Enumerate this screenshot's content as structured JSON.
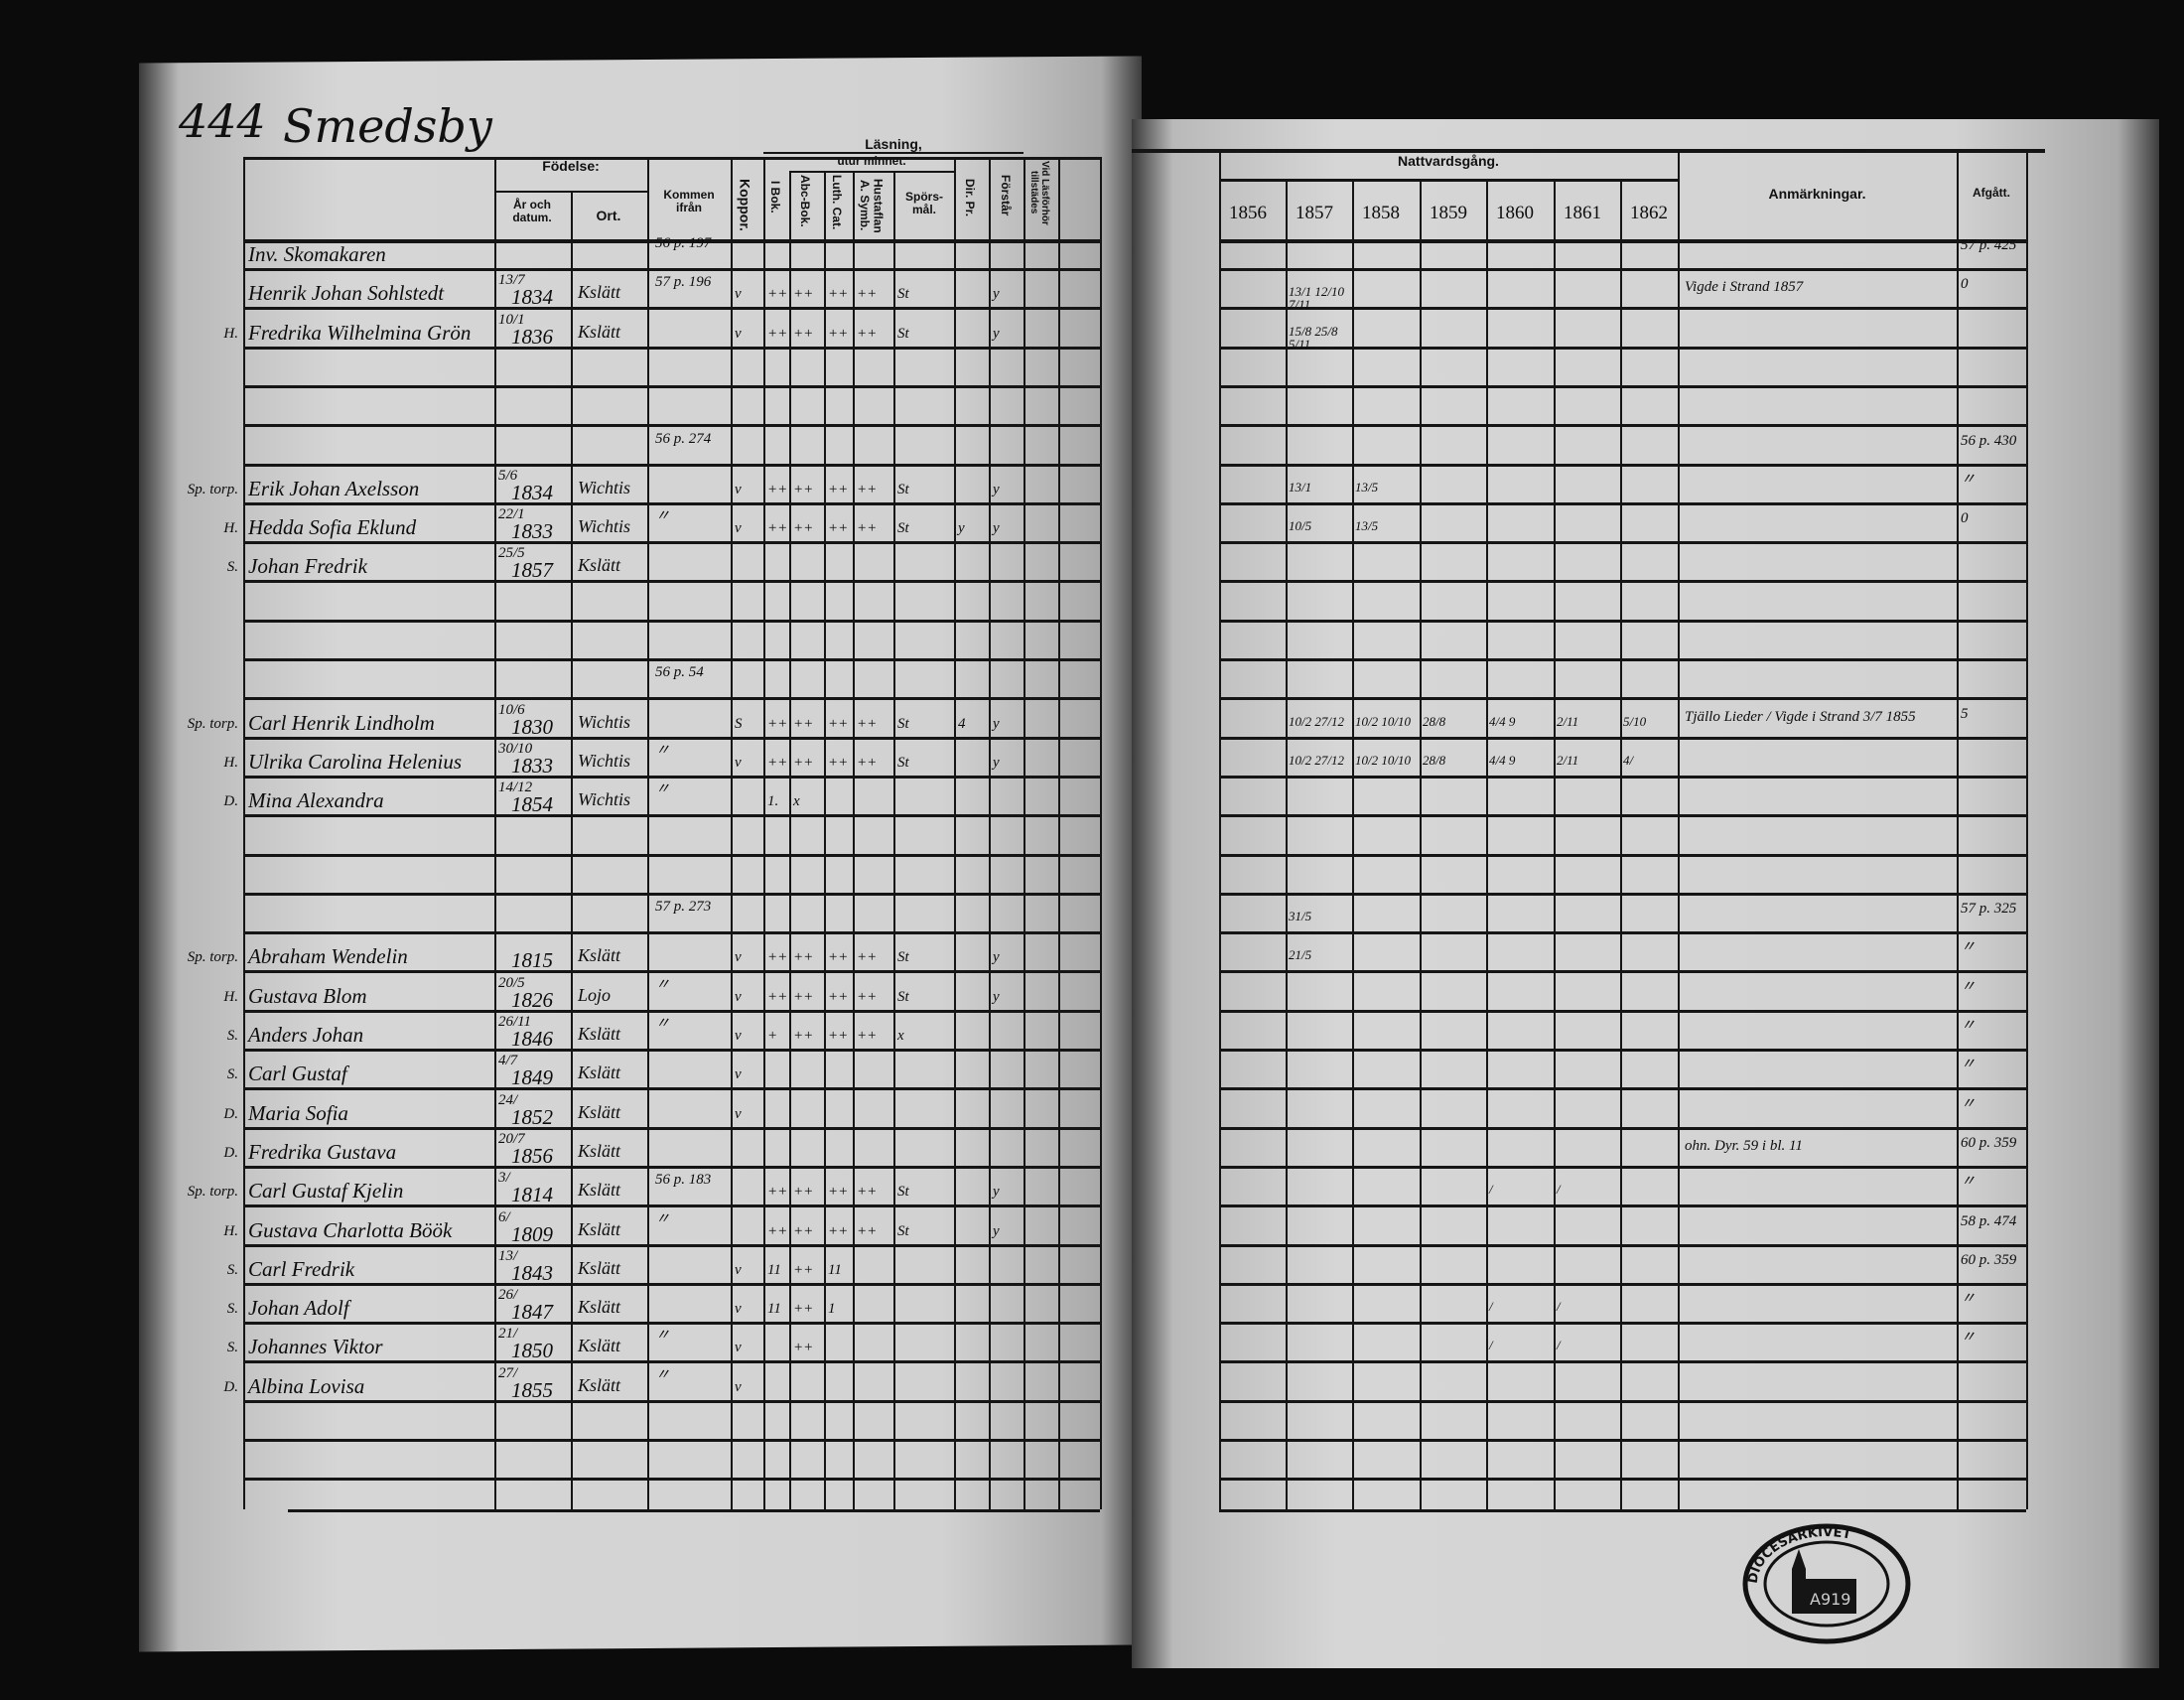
{
  "page_number": "444",
  "village": "Smedsby",
  "left_headers": {
    "birth": "Födelse:",
    "year_date": "År och datum.",
    "place": "Ort.",
    "came_from": "Kommen ifrån",
    "smallpox": "Koppor.",
    "reading": "Läsning,",
    "by_heart": "utur minnet.",
    "in_book": "I Bok.",
    "abc_book": "Abc-Bok.",
    "luth_cat": "Luth. Cat.",
    "hustaflan": "Hustaflan A. Symb.",
    "questions": "Spörs-mål.",
    "dir_pr": "Dir. Pr.",
    "understands": "Förstår",
    "attended": "Vid Läsförhör tillstädes"
  },
  "right_headers": {
    "communion": "Nattvardsgång.",
    "years": [
      "1856",
      "1857",
      "1858",
      "1859",
      "1860",
      "1861",
      "1862"
    ],
    "remarks": "Anmärkningar.",
    "departed": "Afgått."
  },
  "rows": [
    {
      "prefix": "",
      "name": "Inv. Skomakaren",
      "date": "",
      "year": "",
      "place": "",
      "from": "56 p. 197",
      "reading": [
        "",
        "",
        "",
        "",
        "",
        "",
        "",
        ""
      ],
      "comm": [
        "",
        "",
        "",
        "",
        "",
        "",
        ""
      ],
      "remark": "",
      "departed": "57 p. 425"
    },
    {
      "prefix": "",
      "name": "Henrik Johan Sohlstedt",
      "date": "13/7",
      "year": "1834",
      "place": "Kslätt",
      "from": "57 p. 196",
      "reading": [
        "v",
        "++",
        "++",
        "++",
        "++",
        "St",
        "",
        "y"
      ],
      "comm": [
        "",
        "13/1 12/10 7/11",
        "",
        "",
        "",
        "",
        ""
      ],
      "remark": "Vigde i Strand 1857",
      "departed": "0"
    },
    {
      "prefix": "H.",
      "name": "Fredrika Wilhelmina Grön",
      "date": "10/1",
      "year": "1836",
      "place": "Kslätt",
      "from": "",
      "reading": [
        "v",
        "++",
        "++",
        "++",
        "++",
        "St",
        "",
        "y"
      ],
      "comm": [
        "",
        "15/8 25/8 5/11",
        "",
        "",
        "",
        "",
        ""
      ],
      "remark": "",
      "departed": ""
    },
    {
      "prefix": "",
      "name": "",
      "date": "",
      "year": "",
      "place": "",
      "from": "",
      "reading": [
        "",
        "",
        "",
        "",
        "",
        "",
        "",
        ""
      ],
      "comm": [
        "",
        "",
        "",
        "",
        "",
        "",
        ""
      ],
      "remark": "",
      "departed": ""
    },
    {
      "prefix": "",
      "name": "",
      "date": "",
      "year": "",
      "place": "",
      "from": "",
      "reading": [
        "",
        "",
        "",
        "",
        "",
        "",
        "",
        ""
      ],
      "comm": [
        "",
        "",
        "",
        "",
        "",
        "",
        ""
      ],
      "remark": "",
      "departed": ""
    },
    {
      "prefix": "",
      "name": "",
      "date": "",
      "year": "",
      "place": "",
      "from": "56 p. 274",
      "reading": [
        "",
        "",
        "",
        "",
        "",
        "",
        "",
        ""
      ],
      "comm": [
        "",
        "",
        "",
        "",
        "",
        "",
        ""
      ],
      "remark": "",
      "departed": "56 p. 430"
    },
    {
      "prefix": "Sp. torp.",
      "name": "Erik Johan Axelsson",
      "date": "5/6",
      "year": "1834",
      "place": "Wichtis",
      "from": "",
      "reading": [
        "v",
        "++",
        "++",
        "++",
        "++",
        "St",
        "",
        "y"
      ],
      "comm": [
        "",
        "13/1",
        "13/5",
        "",
        "",
        "",
        ""
      ],
      "remark": "",
      "departed": "〃"
    },
    {
      "prefix": "H.",
      "name": "Hedda Sofia Eklund",
      "date": "22/1",
      "year": "1833",
      "place": "Wichtis",
      "from": "〃",
      "reading": [
        "v",
        "++",
        "++",
        "++",
        "++",
        "St",
        "y",
        "y"
      ],
      "comm": [
        "",
        "10/5",
        "13/5",
        "",
        "",
        "",
        ""
      ],
      "remark": "",
      "departed": "0"
    },
    {
      "prefix": "S.",
      "name": "Johan Fredrik",
      "date": "25/5",
      "year": "1857",
      "place": "Kslätt",
      "from": "",
      "reading": [
        "",
        "",
        "",
        "",
        "",
        "",
        "",
        ""
      ],
      "comm": [
        "",
        "",
        "",
        "",
        "",
        "",
        ""
      ],
      "remark": "",
      "departed": ""
    },
    {
      "prefix": "",
      "name": "",
      "date": "",
      "year": "",
      "place": "",
      "from": "",
      "reading": [
        "",
        "",
        "",
        "",
        "",
        "",
        "",
        ""
      ],
      "comm": [
        "",
        "",
        "",
        "",
        "",
        "",
        ""
      ],
      "remark": "",
      "departed": ""
    },
    {
      "prefix": "",
      "name": "",
      "date": "",
      "year": "",
      "place": "",
      "from": "",
      "reading": [
        "",
        "",
        "",
        "",
        "",
        "",
        "",
        ""
      ],
      "comm": [
        "",
        "",
        "",
        "",
        "",
        "",
        ""
      ],
      "remark": "",
      "departed": ""
    },
    {
      "prefix": "",
      "name": "",
      "date": "",
      "year": "",
      "place": "",
      "from": "56 p. 54",
      "reading": [
        "",
        "",
        "",
        "",
        "",
        "",
        "",
        ""
      ],
      "comm": [
        "",
        "",
        "",
        "",
        "",
        "",
        ""
      ],
      "remark": "",
      "departed": ""
    },
    {
      "prefix": "Sp. torp.",
      "name": "Carl Henrik Lindholm",
      "date": "10/6",
      "year": "1830",
      "place": "Wichtis",
      "from": "",
      "reading": [
        "S",
        "++",
        "++",
        "++",
        "++",
        "St",
        "4",
        "y"
      ],
      "comm": [
        "",
        "10/2 27/12",
        "10/2 10/10",
        "28/8",
        "4/4 9",
        "2/11",
        "5/10"
      ],
      "remark": "Tjällo Lieder / Vigde i Strand 3/7 1855",
      "departed": "5"
    },
    {
      "prefix": "H.",
      "name": "Ulrika Carolina Helenius",
      "date": "30/10",
      "year": "1833",
      "place": "Wichtis",
      "from": "〃",
      "reading": [
        "v",
        "++",
        "++",
        "++",
        "++",
        "St",
        "",
        "y"
      ],
      "comm": [
        "",
        "10/2 27/12",
        "10/2 10/10",
        "28/8",
        "4/4 9",
        "2/11",
        "4/"
      ],
      "remark": "",
      "departed": ""
    },
    {
      "prefix": "D.",
      "name": "Mina Alexandra",
      "date": "14/12",
      "year": "1854",
      "place": "Wichtis",
      "from": "〃",
      "reading": [
        "",
        "1.",
        "x",
        "",
        "",
        "",
        "",
        ""
      ],
      "comm": [
        "",
        "",
        "",
        "",
        "",
        "",
        ""
      ],
      "remark": "",
      "departed": ""
    },
    {
      "prefix": "",
      "name": "",
      "date": "",
      "year": "",
      "place": "",
      "from": "",
      "reading": [
        "",
        "",
        "",
        "",
        "",
        "",
        "",
        ""
      ],
      "comm": [
        "",
        "",
        "",
        "",
        "",
        "",
        ""
      ],
      "remark": "",
      "departed": ""
    },
    {
      "prefix": "",
      "name": "",
      "date": "",
      "year": "",
      "place": "",
      "from": "",
      "reading": [
        "",
        "",
        "",
        "",
        "",
        "",
        "",
        ""
      ],
      "comm": [
        "",
        "",
        "",
        "",
        "",
        "",
        ""
      ],
      "remark": "",
      "departed": ""
    },
    {
      "prefix": "",
      "name": "",
      "date": "",
      "year": "",
      "place": "",
      "from": "57 p. 273",
      "reading": [
        "",
        "",
        "",
        "",
        "",
        "",
        "",
        ""
      ],
      "comm": [
        "",
        "31/5",
        "",
        "",
        "",
        "",
        ""
      ],
      "remark": "",
      "departed": "57 p. 325"
    },
    {
      "prefix": "Sp. torp.",
      "name": "Abraham Wendelin",
      "date": "",
      "year": "1815",
      "place": "Kslätt",
      "from": "",
      "reading": [
        "v",
        "++",
        "++",
        "++",
        "++",
        "St",
        "",
        "y"
      ],
      "comm": [
        "",
        "21/5",
        "",
        "",
        "",
        "",
        ""
      ],
      "remark": "",
      "departed": "〃"
    },
    {
      "prefix": "H.",
      "name": "Gustava Blom",
      "date": "20/5",
      "year": "1826",
      "place": "Lojo",
      "from": "〃",
      "reading": [
        "v",
        "++",
        "++",
        "++",
        "++",
        "St",
        "",
        "y"
      ],
      "comm": [
        "",
        "",
        "",
        "",
        "",
        "",
        ""
      ],
      "remark": "",
      "departed": "〃"
    },
    {
      "prefix": "S.",
      "name": "Anders Johan",
      "date": "26/11",
      "year": "1846",
      "place": "Kslätt",
      "from": "〃",
      "reading": [
        "v",
        "+",
        "++",
        "++",
        "++",
        "x",
        "",
        ""
      ],
      "comm": [
        "",
        "",
        "",
        "",
        "",
        "",
        ""
      ],
      "remark": "",
      "departed": "〃"
    },
    {
      "prefix": "S.",
      "name": "Carl Gustaf",
      "date": "4/7",
      "year": "1849",
      "place": "Kslätt",
      "from": "",
      "reading": [
        "v",
        "",
        "",
        "",
        "",
        "",
        "",
        ""
      ],
      "comm": [
        "",
        "",
        "",
        "",
        "",
        "",
        ""
      ],
      "remark": "",
      "departed": "〃"
    },
    {
      "prefix": "D.",
      "name": "Maria Sofia",
      "date": "24/",
      "year": "1852",
      "place": "Kslätt",
      "from": "",
      "reading": [
        "v",
        "",
        "",
        "",
        "",
        "",
        "",
        ""
      ],
      "comm": [
        "",
        "",
        "",
        "",
        "",
        "",
        ""
      ],
      "remark": "",
      "departed": "〃"
    },
    {
      "prefix": "D.",
      "name": "Fredrika Gustava",
      "date": "20/7",
      "year": "1856",
      "place": "Kslätt",
      "from": "",
      "reading": [
        "",
        "",
        "",
        "",
        "",
        "",
        "",
        ""
      ],
      "comm": [
        "",
        "",
        "",
        "",
        "",
        "",
        ""
      ],
      "remark": "ohn. Dyr. 59 i bl. 11",
      "departed": "60 p. 359"
    },
    {
      "prefix": "Sp. torp.",
      "name": "Carl Gustaf Kjelin",
      "date": "3/",
      "year": "1814",
      "place": "Kslätt",
      "from": "56 p. 183",
      "reading": [
        "",
        "++",
        "++",
        "++",
        "++",
        "St",
        "",
        "y"
      ],
      "comm": [
        "",
        "",
        "",
        "",
        "/",
        "/",
        ""
      ],
      "remark": "",
      "departed": "〃"
    },
    {
      "prefix": "H.",
      "name": "Gustava Charlotta Böök",
      "date": "6/",
      "year": "1809",
      "place": "Kslätt",
      "from": "〃",
      "reading": [
        "",
        "++",
        "++",
        "++",
        "++",
        "St",
        "",
        "y"
      ],
      "comm": [
        "",
        "",
        "",
        "",
        "",
        "",
        ""
      ],
      "remark": "",
      "departed": "58 p. 474"
    },
    {
      "prefix": "S.",
      "name": "Carl Fredrik",
      "date": "13/",
      "year": "1843",
      "place": "Kslätt",
      "from": "",
      "reading": [
        "v",
        "11",
        "++",
        "11",
        "",
        "",
        "",
        ""
      ],
      "comm": [
        "",
        "",
        "",
        "",
        "",
        "",
        ""
      ],
      "remark": "",
      "departed": "60 p. 359"
    },
    {
      "prefix": "S.",
      "name": "Johan Adolf",
      "date": "26/",
      "year": "1847",
      "place": "Kslätt",
      "from": "",
      "reading": [
        "v",
        "11",
        "++",
        "1",
        "",
        "",
        "",
        ""
      ],
      "comm": [
        "",
        "",
        "",
        "",
        "/",
        "/",
        ""
      ],
      "remark": "",
      "departed": "〃"
    },
    {
      "prefix": "S.",
      "name": "Johannes Viktor",
      "date": "21/",
      "year": "1850",
      "place": "Kslätt",
      "from": "〃",
      "reading": [
        "v",
        "",
        "++",
        "",
        "",
        "",
        "",
        ""
      ],
      "comm": [
        "",
        "",
        "",
        "",
        "/",
        "/",
        ""
      ],
      "remark": "",
      "departed": "〃"
    },
    {
      "prefix": "D.",
      "name": "Albina Lovisa",
      "date": "27/",
      "year": "1855",
      "place": "Kslätt",
      "from": "〃",
      "reading": [
        "v",
        "",
        "",
        "",
        "",
        "",
        "",
        ""
      ],
      "comm": [
        "",
        "",
        "",
        "",
        "",
        "",
        ""
      ],
      "remark": "",
      "departed": ""
    },
    {
      "prefix": "",
      "name": "",
      "date": "",
      "year": "",
      "place": "",
      "from": "",
      "reading": [
        "",
        "",
        "",
        "",
        "",
        "",
        "",
        ""
      ],
      "comm": [
        "",
        "",
        "",
        "",
        "",
        "",
        ""
      ],
      "remark": "",
      "departed": ""
    },
    {
      "prefix": "",
      "name": "",
      "date": "",
      "year": "",
      "place": "",
      "from": "",
      "reading": [
        "",
        "",
        "",
        "",
        "",
        "",
        "",
        ""
      ],
      "comm": [
        "",
        "",
        "",
        "",
        "",
        "",
        ""
      ],
      "remark": "",
      "departed": ""
    }
  ],
  "stamp": {
    "text": "DIÖCESARKIVET",
    "year": "1919"
  }
}
